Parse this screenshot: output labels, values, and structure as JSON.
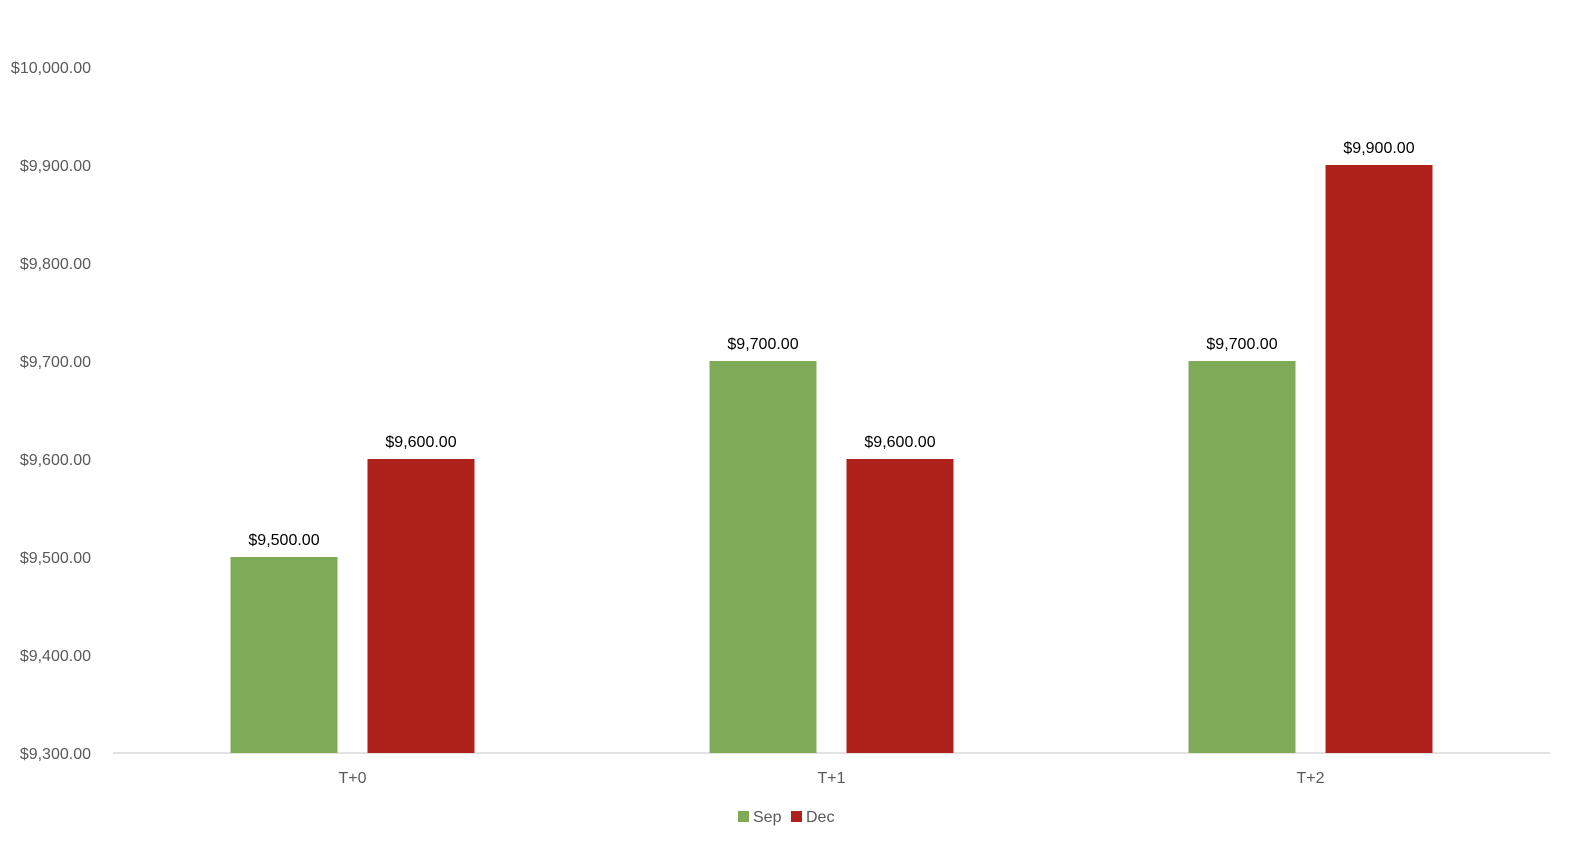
{
  "chart_data": {
    "type": "bar",
    "title": "",
    "xlabel": "",
    "ylabel": "",
    "categories": [
      "T+0",
      "T+1",
      "T+2"
    ],
    "series": [
      {
        "name": "Sep",
        "color": "#7fab58",
        "values": [
          9500,
          9700,
          9700
        ],
        "labels": [
          "$9,500.00",
          "$9,700.00",
          "$9,700.00"
        ]
      },
      {
        "name": "Dec",
        "color": "#ae221b",
        "values": [
          9600,
          9600,
          9900
        ],
        "labels": [
          "$9,600.00",
          "$9,600.00",
          "$9,900.00"
        ]
      }
    ],
    "ylim": [
      9300,
      10000
    ],
    "yticks": [
      9300,
      9400,
      9500,
      9600,
      9700,
      9800,
      9900,
      10000
    ],
    "ytick_labels": [
      "$9,300.00",
      "$9,400.00",
      "$9,500.00",
      "$9,600.00",
      "$9,700.00",
      "$9,800.00",
      "$9,900.00",
      "$10,000.00"
    ],
    "grid": false,
    "legend": "bottom-center",
    "axis_color": "#d9d9d9"
  }
}
